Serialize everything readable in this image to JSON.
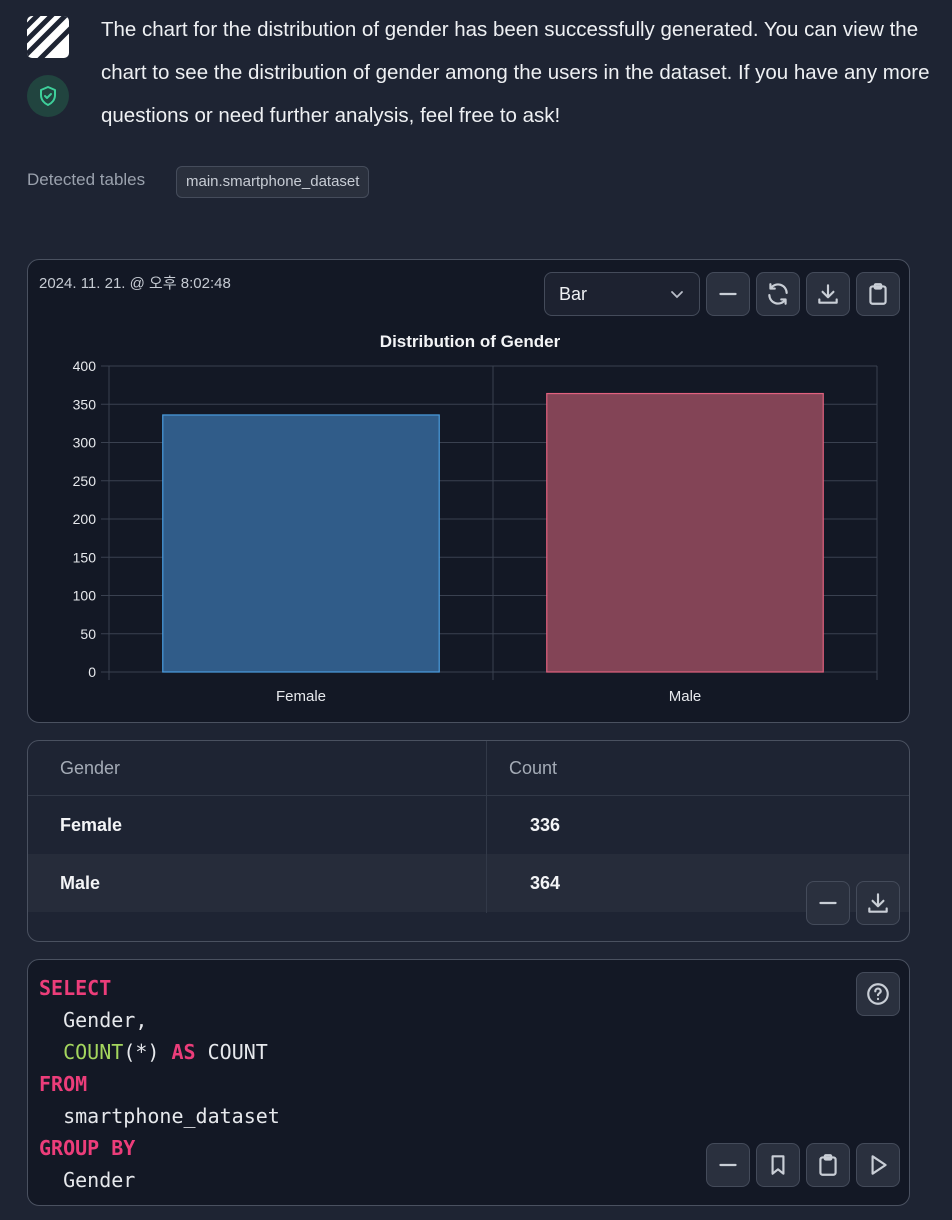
{
  "message": "The chart for the distribution of gender has been successfully generated. You can view the chart to see the distribution of gender among the users in the dataset. If you have any more questions or need further analysis, feel free to ask!",
  "detected": {
    "label": "Detected tables",
    "tables": [
      "main.smartphone_dataset"
    ]
  },
  "chart_panel": {
    "timestamp": "2024. 11. 21. @ 오후 8:02:48",
    "chart_type_selected": "Bar",
    "buttons": [
      "minimize-icon",
      "refresh-icon",
      "download-icon",
      "clipboard-icon"
    ]
  },
  "chart_data": {
    "type": "bar",
    "title": "Distribution of Gender",
    "categories": [
      "Female",
      "Male"
    ],
    "values": [
      336,
      364
    ],
    "colors": [
      "#305c89",
      "#834456"
    ],
    "border_colors": [
      "#4a9de0",
      "#e2617f"
    ],
    "ylim": [
      0,
      400
    ],
    "yticks": [
      0,
      50,
      100,
      150,
      200,
      250,
      300,
      350,
      400
    ],
    "xlabel": "",
    "ylabel": "",
    "grid": true
  },
  "result_table": {
    "columns": [
      "Gender",
      "Count"
    ],
    "rows": [
      [
        "Female",
        "336"
      ],
      [
        "Male",
        "364"
      ]
    ]
  },
  "sql": {
    "lines": [
      [
        {
          "t": "SELECT",
          "c": "kw"
        }
      ],
      [
        {
          "t": "  Gender,",
          "c": ""
        }
      ],
      [
        {
          "t": "  ",
          "c": ""
        },
        {
          "t": "COUNT",
          "c": "fn"
        },
        {
          "t": "(*) ",
          "c": ""
        },
        {
          "t": "AS",
          "c": "kw"
        },
        {
          "t": " COUNT",
          "c": ""
        }
      ],
      [
        {
          "t": "FROM",
          "c": "kw"
        }
      ],
      [
        {
          "t": "  smartphone_dataset",
          "c": ""
        }
      ],
      [
        {
          "t": "GROUP BY",
          "c": "kw"
        }
      ],
      [
        {
          "t": "  Gender",
          "c": ""
        }
      ]
    ]
  }
}
